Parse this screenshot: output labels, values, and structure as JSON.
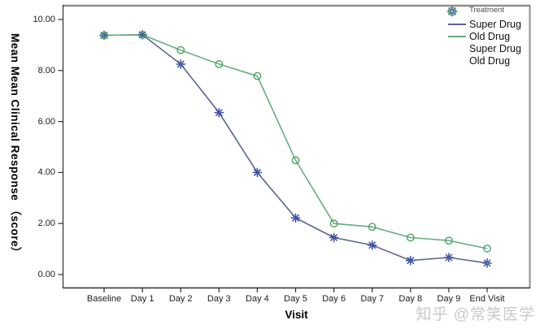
{
  "watermark": "知乎 @常笑医学",
  "colors": {
    "frame_light": "#8e8e8e",
    "frame_dark": "#2e2e2e",
    "tick": "#2e2e2e",
    "text": "#1a1a1a",
    "legend_title": "#4a4a4a",
    "watermark": "#c9c9c9",
    "background": "#ffffff"
  },
  "chart_data": {
    "type": "line",
    "title": "",
    "xlabel": "Visit",
    "ylabel": "Mean Mean Clinical Response （score）",
    "categories": [
      "Baseline",
      "Day 1",
      "Day 2",
      "Day 3",
      "Day 4",
      "Day 5",
      "Day 6",
      "Day 7",
      "Day 8",
      "Day 9",
      "End Visit"
    ],
    "series": [
      {
        "name": "Super Drug",
        "marker": "star",
        "line_color": "#5a6590",
        "marker_color": "#3a4da3",
        "values": [
          9.38,
          9.4,
          8.25,
          6.35,
          4.0,
          2.22,
          1.45,
          1.15,
          0.55,
          0.67,
          0.45
        ]
      },
      {
        "name": "Old Drug",
        "marker": "circle",
        "line_color": "#66ae7e",
        "marker_color": "#4aa45f",
        "values": [
          9.38,
          9.4,
          8.8,
          8.25,
          7.78,
          4.48,
          2.0,
          1.87,
          1.45,
          1.33,
          1.02
        ]
      }
    ],
    "ytick_labels": [
      "10.00",
      "8.00",
      "6.00",
      "4.00",
      "2.00",
      "0.00"
    ],
    "ylim": [
      0,
      10.5
    ],
    "grid": false,
    "legend": {
      "title": "Treatment",
      "position": "top-right",
      "entries": [
        {
          "label": "Super Drug",
          "swatch": "line",
          "series": 0
        },
        {
          "label": "Old Drug",
          "swatch": "line",
          "series": 1
        },
        {
          "label": "Super Drug",
          "swatch": "marker",
          "series": 0
        },
        {
          "label": "Old Drug",
          "swatch": "marker",
          "series": 1
        }
      ]
    }
  }
}
